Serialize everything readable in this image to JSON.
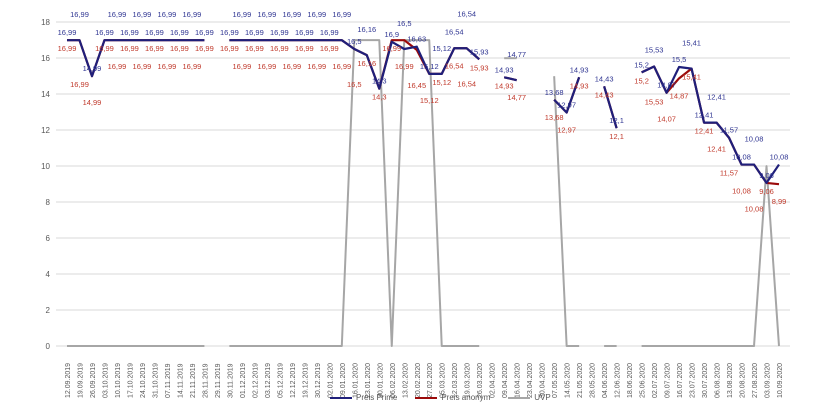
{
  "chart_data": {
    "type": "line",
    "title": "",
    "xlabel": "",
    "ylabel": "",
    "ylim": [
      0,
      18
    ],
    "yticks": [
      "0",
      "2",
      "4",
      "6",
      "8",
      "10",
      "12",
      "14",
      "16",
      "18"
    ],
    "grid": true,
    "legend_position": "bottom",
    "categories": [
      "12.09.2019",
      "19.09.2019",
      "26.09.2019",
      "03.10.2019",
      "10.10.2019",
      "17.10.2019",
      "24.10.2019",
      "31.10.2019",
      "07.11.2019",
      "14.11.2019",
      "21.11.2019",
      "28.11.2019",
      "29.11.2019",
      "30.11.2019",
      "01.12.2019",
      "02.12.2019",
      "03.12.2019",
      "05.12.2019",
      "12.12.2019",
      "19.12.2019",
      "30.12.2019",
      "02.01.2020",
      "09.01.2020",
      "16.01.2020",
      "23.01.2020",
      "30.01.2020",
      "06.02.2020",
      "13.02.2020",
      "20.02.2020",
      "27.02.2020",
      "05.03.2020",
      "12.03.2020",
      "19.03.2020",
      "26.03.2020",
      "02.04.2020",
      "09.04.2020",
      "16.04.2020",
      "23.04.2020",
      "30.04.2020",
      "07.05.2020",
      "14.05.2020",
      "21.05.2020",
      "28.05.2020",
      "04.06.2020",
      "12.06.2020",
      "18.06.2020",
      "25.06.2020",
      "02.07.2020",
      "09.07.2020",
      "16.07.2020",
      "23.07.2020",
      "30.07.2020",
      "06.08.2020",
      "13.08.2020",
      "20.08.2020",
      "27.08.2020",
      "03.09.2020",
      "10.09.2020"
    ],
    "series": [
      {
        "name": "Preis Prime",
        "color": "#1f1f7a",
        "label_color": "#2f3592",
        "label_pos": "above",
        "values": [
          16.99,
          16.99,
          14.99,
          16.99,
          16.99,
          16.99,
          16.99,
          16.99,
          16.99,
          16.99,
          16.99,
          16.99,
          null,
          16.99,
          16.99,
          16.99,
          16.99,
          16.99,
          16.99,
          16.99,
          16.99,
          16.99,
          16.99,
          16.5,
          16.16,
          14.3,
          16.9,
          16.5,
          16.63,
          15.12,
          15.12,
          16.54,
          16.54,
          15.93,
          null,
          14.93,
          14.77,
          null,
          null,
          13.68,
          12.97,
          14.93,
          null,
          14.43,
          12.1,
          null,
          15.2,
          15.53,
          14.07,
          15.5,
          15.41,
          12.41,
          12.41,
          11.57,
          10.08,
          10.08,
          9.06,
          10.08
        ]
      },
      {
        "name": "Preis anonym",
        "color": "#9b0a0a",
        "label_color": "#c0392b",
        "label_pos": "below",
        "values": [
          16.99,
          16.99,
          14.99,
          16.99,
          16.99,
          16.99,
          16.99,
          16.99,
          16.99,
          16.99,
          16.99,
          16.99,
          null,
          16.99,
          16.99,
          16.99,
          16.99,
          16.99,
          16.99,
          16.99,
          16.99,
          16.99,
          16.99,
          16.5,
          16.16,
          14.3,
          16.99,
          16.99,
          16.45,
          15.12,
          15.12,
          16.54,
          16.54,
          15.93,
          null,
          14.93,
          14.77,
          null,
          null,
          13.68,
          12.97,
          14.93,
          null,
          14.43,
          12.1,
          null,
          15.2,
          15.53,
          14.07,
          14.87,
          15.41,
          12.41,
          12.41,
          11.57,
          10.08,
          10.08,
          9.06,
          8.99
        ]
      },
      {
        "name": "UVP",
        "color": "#a6a6a6",
        "label_color": null,
        "label_pos": "none",
        "values": [
          0,
          0,
          0,
          0,
          0,
          0,
          0,
          0,
          0,
          0,
          0,
          0,
          null,
          0,
          0,
          0,
          0,
          0,
          0,
          0,
          0,
          0,
          0,
          16.99,
          16.99,
          16.99,
          0,
          16.99,
          16.99,
          16.99,
          0,
          0,
          0,
          0,
          null,
          15.99,
          15.99,
          null,
          null,
          14.99,
          0,
          0,
          null,
          0,
          0,
          null,
          0,
          0,
          0,
          0,
          0,
          0,
          0,
          0,
          0,
          0,
          9.99,
          0
        ]
      }
    ]
  }
}
